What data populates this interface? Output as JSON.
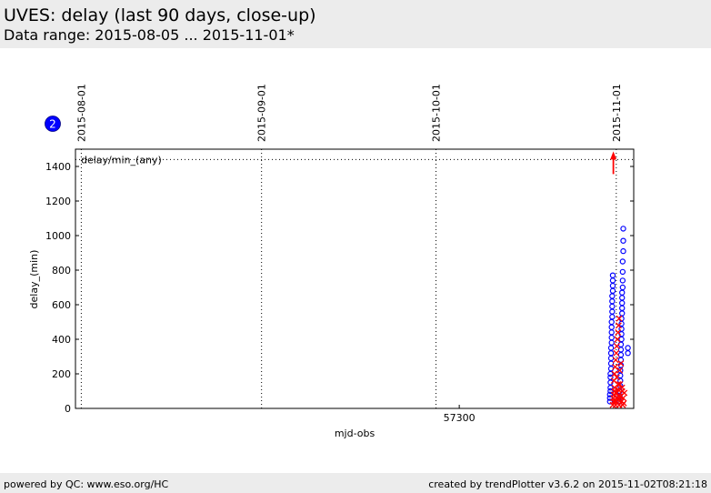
{
  "header": {
    "title": "UVES: delay (last 90 days, close-up)",
    "subtitle": "Data range: 2015-08-05 ... 2015-11-01*"
  },
  "footer": {
    "left": "powered by QC: www.eso.org/HC",
    "right": "created by trendPlotter v3.6.2 on 2015-11-02T08:21:18"
  },
  "badge": "2",
  "colors": {
    "blue": "#0000ff",
    "red": "#ff0000",
    "header_bg": "#ececec"
  },
  "chart_data": {
    "type": "scatter",
    "xlabel": "mjd-obs",
    "ylabel": "delay_(min)",
    "xlim": [
      57234,
      57330
    ],
    "ylim": [
      0,
      1500
    ],
    "xticks": [
      {
        "value": 57300,
        "label": "57300"
      }
    ],
    "yticks": [
      0,
      200,
      400,
      600,
      800,
      1000,
      1200,
      1400
    ],
    "date_markers": [
      {
        "mjd": 57235,
        "label": "2015-08-01"
      },
      {
        "mjd": 57266,
        "label": "2015-09-01"
      },
      {
        "mjd": 57296,
        "label": "2015-10-01"
      },
      {
        "mjd": 57327,
        "label": "2015-11-01"
      }
    ],
    "reference_line": {
      "value": 1440,
      "label": "delay/min_(any)"
    },
    "outlier_arrow": {
      "x": 57326.5,
      "label": "delay above 1440"
    },
    "series": [
      {
        "style": "blue-circle",
        "points": [
          [
            57325.9,
            40
          ],
          [
            57325.9,
            60
          ],
          [
            57325.9,
            80
          ],
          [
            57326.0,
            100
          ],
          [
            57326.0,
            120
          ],
          [
            57326.0,
            150
          ],
          [
            57326.0,
            180
          ],
          [
            57326.0,
            200
          ],
          [
            57326.1,
            230
          ],
          [
            57326.1,
            260
          ],
          [
            57326.1,
            290
          ],
          [
            57326.1,
            320
          ],
          [
            57326.1,
            350
          ],
          [
            57326.2,
            380
          ],
          [
            57326.2,
            410
          ],
          [
            57326.2,
            440
          ],
          [
            57326.2,
            470
          ],
          [
            57326.2,
            500
          ],
          [
            57326.3,
            530
          ],
          [
            57326.3,
            560
          ],
          [
            57326.3,
            590
          ],
          [
            57326.3,
            620
          ],
          [
            57326.3,
            650
          ],
          [
            57326.4,
            680
          ],
          [
            57326.4,
            710
          ],
          [
            57326.4,
            740
          ],
          [
            57326.4,
            770
          ],
          [
            57327.6,
            40
          ],
          [
            57327.6,
            70
          ],
          [
            57327.6,
            100
          ],
          [
            57327.7,
            130
          ],
          [
            57327.7,
            160
          ],
          [
            57327.7,
            190
          ],
          [
            57327.7,
            220
          ],
          [
            57327.8,
            250
          ],
          [
            57327.8,
            280
          ],
          [
            57327.8,
            310
          ],
          [
            57327.8,
            340
          ],
          [
            57327.8,
            370
          ],
          [
            57327.9,
            400
          ],
          [
            57327.9,
            430
          ],
          [
            57327.9,
            460
          ],
          [
            57327.9,
            490
          ],
          [
            57327.9,
            520
          ],
          [
            57328.0,
            550
          ],
          [
            57328.0,
            580
          ],
          [
            57328.0,
            610
          ],
          [
            57328.0,
            640
          ],
          [
            57328.0,
            670
          ],
          [
            57328.1,
            700
          ],
          [
            57328.1,
            740
          ],
          [
            57328.1,
            790
          ],
          [
            57328.1,
            850
          ],
          [
            57328.2,
            910
          ],
          [
            57328.2,
            970
          ],
          [
            57328.2,
            1040
          ],
          [
            57329.0,
            320
          ],
          [
            57329.0,
            350
          ]
        ]
      },
      {
        "style": "red-cross",
        "points": [
          [
            57326.4,
            20
          ],
          [
            57326.5,
            40
          ],
          [
            57326.5,
            60
          ],
          [
            57326.6,
            80
          ],
          [
            57326.7,
            100
          ],
          [
            57326.7,
            120
          ],
          [
            57326.8,
            40
          ],
          [
            57326.9,
            20
          ],
          [
            57327.0,
            60
          ],
          [
            57327.1,
            90
          ],
          [
            57327.2,
            30
          ],
          [
            57327.3,
            110
          ],
          [
            57327.4,
            50
          ],
          [
            57327.5,
            20
          ],
          [
            57327.6,
            140
          ],
          [
            57327.7,
            70
          ],
          [
            57327.9,
            40
          ],
          [
            57328.0,
            100
          ],
          [
            57328.1,
            20
          ],
          [
            57328.2,
            60
          ],
          [
            57328.3,
            30
          ],
          [
            57328.4,
            90
          ],
          [
            57326.6,
            160
          ],
          [
            57326.7,
            200
          ],
          [
            57326.8,
            240
          ],
          [
            57326.9,
            280
          ],
          [
            57327.0,
            320
          ],
          [
            57327.1,
            360
          ],
          [
            57327.2,
            400
          ],
          [
            57327.3,
            440
          ],
          [
            57327.4,
            480
          ],
          [
            57327.5,
            520
          ],
          [
            57327.1,
            180
          ],
          [
            57327.3,
            140
          ],
          [
            57327.6,
            220
          ],
          [
            57327.8,
            260
          ],
          [
            57328.0,
            120
          ],
          [
            57326.9,
            90
          ],
          [
            57327.4,
            70
          ]
        ]
      }
    ]
  }
}
